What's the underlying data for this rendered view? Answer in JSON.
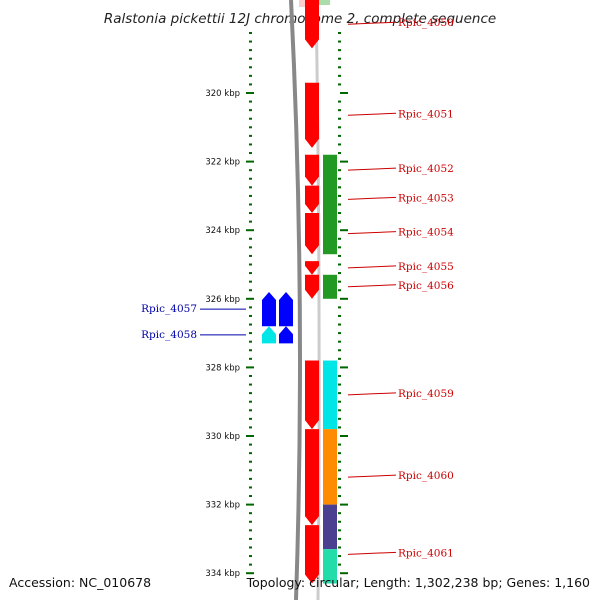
{
  "title": "Ralstonia pickettii 12J chromosome 2, complete sequence",
  "footer": {
    "accession": "Accession: NC_010678",
    "topology": "Topology: circular; Length: 1,302,238 bp; Genes: 1,160"
  },
  "colors": {
    "forward_cds": "#ff0000",
    "reverse_cds": "#0000ff",
    "backbone": "#888888",
    "tick": "#006600",
    "label_forward": "#cc0000",
    "label_reverse": "#0000aa",
    "cog_green": "#229922",
    "cog_cyan": "#00e5e5",
    "cog_orange": "#ff8c00",
    "cog_purple": "#4b3f8f",
    "cog_teal": "#22ddaa"
  },
  "chart_data": {
    "type": "genome-map",
    "axis": {
      "unit": "kbp",
      "ticks": [
        {
          "kbp": 320,
          "label": "320 kbp"
        },
        {
          "kbp": 322,
          "label": "322 kbp"
        },
        {
          "kbp": 324,
          "label": "324 kbp"
        },
        {
          "kbp": 326,
          "label": "326 kbp"
        },
        {
          "kbp": 328,
          "label": "328 kbp"
        },
        {
          "kbp": 330,
          "label": "330 kbp"
        },
        {
          "kbp": 332,
          "label": "332 kbp"
        },
        {
          "kbp": 334,
          "label": "334 kbp"
        }
      ]
    },
    "genes": [
      {
        "name": "Rpic_4050",
        "strand": "+",
        "start": 317.1,
        "end": 318.7
      },
      {
        "name": "Rpic_4051",
        "strand": "+",
        "start": 319.7,
        "end": 321.6
      },
      {
        "name": "Rpic_4052",
        "strand": "+",
        "start": 321.8,
        "end": 322.7
      },
      {
        "name": "Rpic_4053",
        "strand": "+",
        "start": 322.7,
        "end": 323.5
      },
      {
        "name": "Rpic_4054",
        "strand": "+",
        "start": 323.5,
        "end": 324.7
      },
      {
        "name": "Rpic_4055",
        "strand": "+",
        "start": 324.9,
        "end": 325.3
      },
      {
        "name": "Rpic_4056",
        "strand": "+",
        "start": 325.3,
        "end": 326.0
      },
      {
        "name": "Rpic_4057",
        "strand": "-",
        "start": 325.8,
        "end": 326.8
      },
      {
        "name": "Rpic_4058",
        "strand": "-",
        "start": 326.8,
        "end": 327.3
      },
      {
        "name": "Rpic_4059",
        "strand": "+",
        "start": 327.8,
        "end": 329.8
      },
      {
        "name": "Rpic_4060",
        "strand": "+",
        "start": 329.8,
        "end": 332.6
      },
      {
        "name": "Rpic_4061",
        "strand": "+",
        "start": 332.6,
        "end": 334.3
      }
    ],
    "cog_blocks": [
      {
        "start": 321.8,
        "end": 324.7,
        "color": "#229922"
      },
      {
        "start": 325.3,
        "end": 326.0,
        "color": "#229922"
      },
      {
        "start": 327.8,
        "end": 329.8,
        "color": "#00e5e5"
      },
      {
        "start": 329.8,
        "end": 332.0,
        "color": "#ff8c00"
      },
      {
        "start": 332.0,
        "end": 333.3,
        "color": "#4b3f8f"
      },
      {
        "start": 333.3,
        "end": 334.3,
        "color": "#22ddaa"
      }
    ]
  }
}
